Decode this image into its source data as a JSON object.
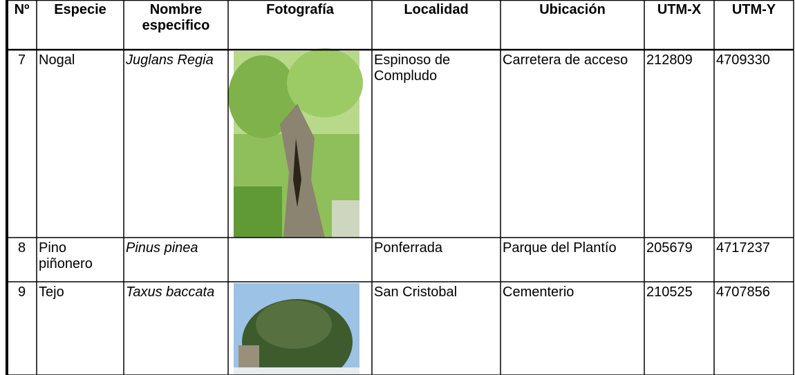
{
  "table": {
    "columns": [
      "Nº",
      "Especie",
      "Nombre especifico",
      "Fotografía",
      "Localidad",
      "Ubicación",
      "UTM-X",
      "UTM-Y"
    ],
    "rows": [
      {
        "numero": "7",
        "especie": "Nogal",
        "nombre": "Juglans Regia",
        "localidad": "Espinoso de Compludo",
        "ubicacion": "Carretera de acceso",
        "utm_x": "212809",
        "utm_y": "4709330"
      },
      {
        "numero": "8",
        "especie": "Pino piñonero",
        "nombre": "Pinus pinea",
        "localidad": "Ponferrada",
        "ubicacion": "Parque del Plantío",
        "utm_x": "205679",
        "utm_y": "4717237"
      },
      {
        "numero": "9",
        "especie": "Tejo",
        "nombre": "Taxus baccata",
        "localidad": "San Cristobal",
        "ubicacion": "Cementerio",
        "utm_x": "210525",
        "utm_y": "4707856"
      }
    ]
  }
}
